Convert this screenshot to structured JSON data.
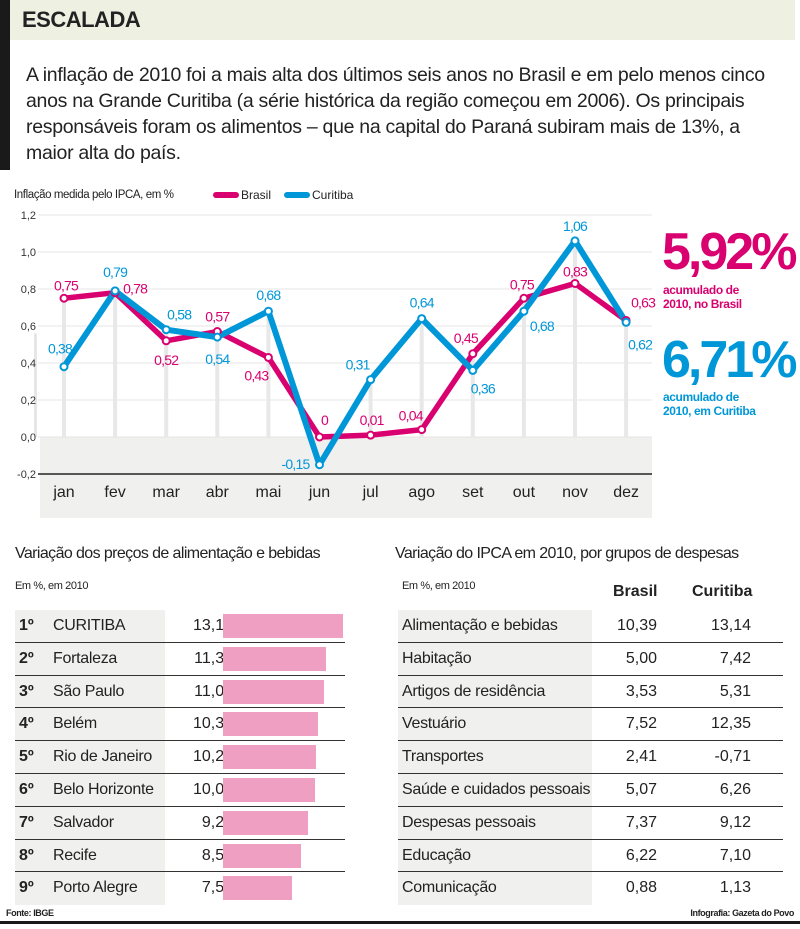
{
  "header": {
    "title": "ESCALADA"
  },
  "intro": "A inflação de 2010 foi a mais alta dos últimos seis anos no Brasil e em pelo menos cinco anos na Grande Curitiba (a série histórica da região começou em 2006). Os principais responsáveis foram os alimentos – que na capital do Paraná subiram mais de 13%, a maior alta do país.",
  "colors": {
    "brasil": "#d9006f",
    "curitiba": "#0097d8",
    "bar": "#ef9fc1"
  },
  "chart_data": {
    "type": "line",
    "title": "Inflação medida pelo IPCA, em %",
    "categories": [
      "jan",
      "fev",
      "mar",
      "abr",
      "mai",
      "jun",
      "jul",
      "ago",
      "set",
      "out",
      "nov",
      "dez"
    ],
    "yticks": [
      "1,2",
      "1,0",
      "0,8",
      "0,6",
      "0,4",
      "0,2",
      "0,0",
      "-0,2"
    ],
    "ylim": [
      -0.2,
      1.2
    ],
    "grid": true,
    "legend_placement": "top",
    "series": [
      {
        "name": "Brasil",
        "color": "#d9006f",
        "values": [
          0.75,
          0.78,
          0.52,
          0.57,
          0.43,
          0,
          0.01,
          0.04,
          0.45,
          0.75,
          0.83,
          0.63
        ],
        "labels": [
          "0,75",
          "0,78",
          "0,52",
          "0,57",
          "0,43",
          "0",
          "0,01",
          "0,04",
          "0,45",
          "0,75",
          "0,83",
          "0,63"
        ]
      },
      {
        "name": "Curitiba",
        "color": "#0097d8",
        "values": [
          0.38,
          0.79,
          0.58,
          0.54,
          0.68,
          -0.15,
          0.31,
          0.64,
          0.36,
          0.68,
          1.06,
          0.62
        ],
        "labels": [
          "0,38",
          "0,79",
          "0,58",
          "0,54",
          "0,68",
          "-0,15",
          "0,31",
          "0,64",
          "0,36",
          "0,68",
          "1,06",
          "0,62"
        ]
      }
    ]
  },
  "totals": {
    "brasil": {
      "value": "5,92%",
      "caption1": "acumulado de",
      "caption2": "2010, no Brasil"
    },
    "curitiba": {
      "value": "6,71%",
      "caption1": "acumulado de",
      "caption2": "2010, em Curitiba"
    }
  },
  "food_table": {
    "title": "Variação dos preços de alimentação e bebidas",
    "subtitle": "Em %, em 2010",
    "rows": [
      {
        "rank": "1º",
        "city": "CURITIBA",
        "value": "13,14",
        "num": 13.14
      },
      {
        "rank": "2º",
        "city": "Fortaleza",
        "value": "11,31",
        "num": 11.31
      },
      {
        "rank": "3º",
        "city": "São Paulo",
        "value": "11,05",
        "num": 11.05
      },
      {
        "rank": "4º",
        "city": "Belém",
        "value": "10,38",
        "num": 10.38
      },
      {
        "rank": "5º",
        "city": "Rio de Janeiro",
        "value": "10,21",
        "num": 10.21
      },
      {
        "rank": "6º",
        "city": "Belo Horizonte",
        "value": "10,03",
        "num": 10.03
      },
      {
        "rank": "7º",
        "city": "Salvador",
        "value": "9,28",
        "num": 9.28
      },
      {
        "rank": "8º",
        "city": "Recife",
        "value": "8,50",
        "num": 8.5
      },
      {
        "rank": "9º",
        "city": "Porto Alegre",
        "value": "7,53",
        "num": 7.53
      }
    ]
  },
  "groups_table": {
    "title": "Variação do IPCA em 2010, por grupos de despesas",
    "subtitle": "Em %, em 2010",
    "col_brasil": "Brasil",
    "col_curitiba": "Curitiba",
    "rows": [
      {
        "group": "Alimentação e bebidas",
        "brasil": "10,39",
        "curitiba": "13,14"
      },
      {
        "group": "Habitação",
        "brasil": "5,00",
        "curitiba": "7,42"
      },
      {
        "group": "Artigos de residência",
        "brasil": "3,53",
        "curitiba": "5,31"
      },
      {
        "group": "Vestuário",
        "brasil": "7,52",
        "curitiba": "12,35"
      },
      {
        "group": "Transportes",
        "brasil": "2,41",
        "curitiba": "-0,71"
      },
      {
        "group": "Saúde e cuidados pessoais",
        "brasil": "5,07",
        "curitiba": "6,26"
      },
      {
        "group": "Despesas pessoais",
        "brasil": "7,37",
        "curitiba": "9,12"
      },
      {
        "group": "Educação",
        "brasil": "6,22",
        "curitiba": "7,10"
      },
      {
        "group": "Comunicação",
        "brasil": "0,88",
        "curitiba": "1,13"
      }
    ]
  },
  "footer": {
    "source": "Fonte: IBGE",
    "credit": "Infografia: Gazeta do Povo"
  }
}
